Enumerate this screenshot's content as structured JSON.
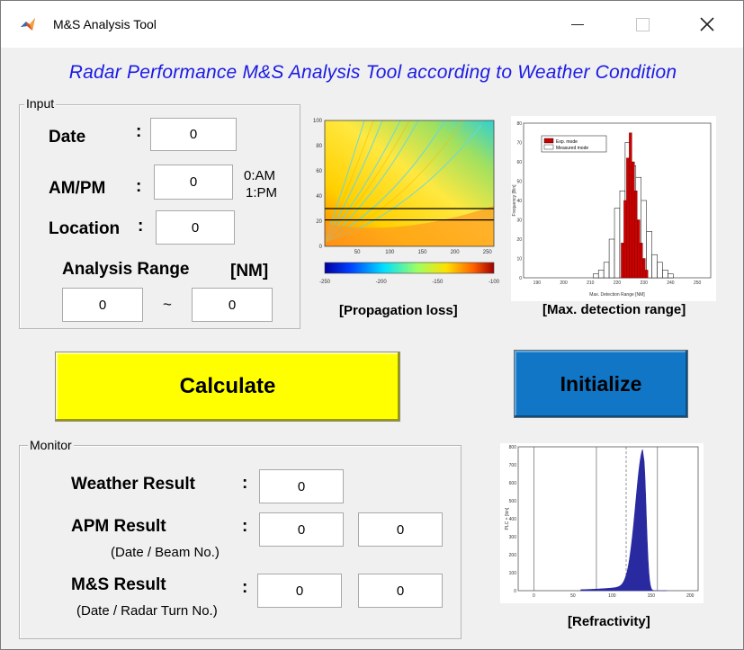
{
  "window": {
    "title": "M&S Analysis Tool",
    "controls": {
      "minimize": "minimize",
      "maximize": "maximize",
      "close": "close"
    }
  },
  "heading": "Radar Performance  M&S Analysis Tool according to Weather Condition",
  "input": {
    "legend": "Input",
    "date_label": "Date",
    "date_value": "0",
    "ampm_label": "AM/PM",
    "ampm_value": "0",
    "ampm_hint_am": "0:AM",
    "ampm_hint_pm": "1:PM",
    "location_label": "Location",
    "location_value": "0",
    "range_label": "Analysis Range",
    "range_unit": "[NM]",
    "range_from": "0",
    "range_sep": "~",
    "range_to": "0",
    "colon": ":"
  },
  "buttons": {
    "calculate": "Calculate",
    "initialize": "Initialize"
  },
  "plots": {
    "propagation_caption": "[Propagation loss]",
    "detection_caption": "[Max. detection range]",
    "refractivity_caption": "[Refractivity]"
  },
  "monitor": {
    "legend": "Monitor",
    "weather_label": "Weather Result",
    "weather_value": "0",
    "apm_label": "APM Result",
    "apm_sub": "(Date / Beam No.)",
    "apm_value1": "0",
    "apm_value2": "0",
    "ms_label": "M&S Result",
    "ms_sub": "(Date / Radar Turn No.)",
    "ms_value1": "0",
    "ms_value2": "0"
  },
  "colors": {
    "heading": "#1a1ae6",
    "calculate_bg": "#ffff00",
    "initialize_bg": "#1176c6",
    "hist_red": "#cc0000",
    "hist_blue": "#2a2aa0"
  },
  "chart_data": [
    {
      "type": "heatmap",
      "description": "propagation loss coverage",
      "xticks": [
        "50",
        "100",
        "150",
        "200",
        "250"
      ],
      "yticks": [
        "100",
        "80",
        "60",
        "40",
        "20",
        "0"
      ],
      "colorbar_ticks": [
        "-250",
        "-200",
        "-150",
        "-100"
      ],
      "xlim": [
        0,
        260
      ],
      "ylim": [
        0,
        100
      ],
      "horizontal_lines": [
        30,
        21
      ]
    },
    {
      "type": "bar",
      "legend": [
        "Exp. mode",
        "Measured mode"
      ],
      "xlabel": "Max. Detection Range [NM]",
      "ylabel": "Frequency [Bin]",
      "xticks": [
        "190",
        "200",
        "210",
        "220",
        "230",
        "240",
        "250"
      ],
      "yticks": [
        "80",
        "70",
        "60",
        "50",
        "40",
        "30",
        "20",
        "10",
        "0"
      ],
      "ylim": [
        0,
        80
      ],
      "measured": {
        "x": [
          212,
          214,
          216,
          218,
          220,
          222,
          224,
          226,
          228,
          230,
          232,
          234,
          236,
          238,
          240
        ],
        "values": [
          2,
          4,
          8,
          20,
          36,
          45,
          70,
          58,
          52,
          40,
          24,
          12,
          8,
          4,
          2
        ]
      },
      "exp": {
        "x": [
          222,
          223,
          224,
          225,
          226,
          227,
          228,
          229,
          230,
          231
        ],
        "values": [
          18,
          40,
          62,
          75,
          60,
          45,
          30,
          18,
          10,
          4
        ]
      }
    },
    {
      "type": "bar",
      "ylabel": "PLC = [bin]",
      "xticks": [
        "0",
        "50",
        "100",
        "150",
        "200"
      ],
      "yticks": [
        "800",
        "700",
        "600",
        "500",
        "400",
        "300",
        "200",
        "100",
        "0"
      ],
      "xlim": [
        -20,
        210
      ],
      "ylim": [
        0,
        800
      ],
      "vlines": [
        0,
        80,
        118,
        158
      ],
      "peak": 750
    }
  ]
}
